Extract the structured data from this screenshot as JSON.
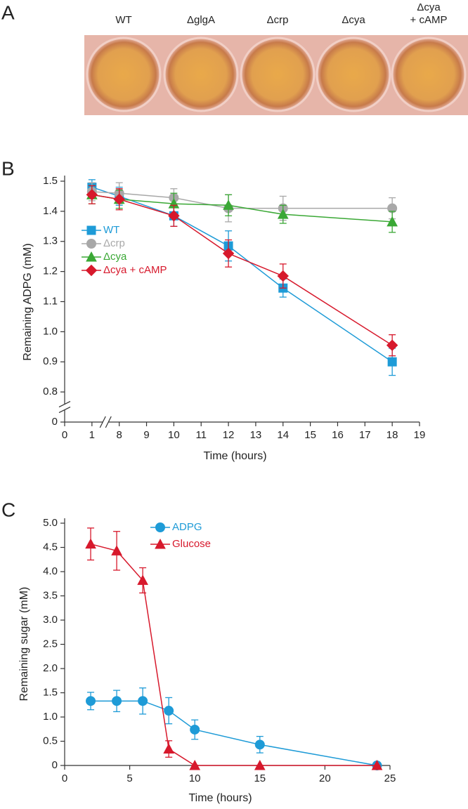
{
  "panel_labels": [
    "A",
    "B",
    "C"
  ],
  "photo_labels": [
    [
      "WT"
    ],
    [
      "ΔglgA"
    ],
    [
      "Δcrp"
    ],
    [
      "Δcya"
    ],
    [
      "Δcya",
      "+ cAMP"
    ]
  ],
  "chart_data": [
    {
      "type": "line",
      "x_title": "Time (hours)",
      "y_title": "Remaining ADPG (mM)",
      "x": [
        1,
        8,
        10,
        12,
        14,
        18
      ],
      "xlim": [
        0,
        19
      ],
      "xticks": [
        0,
        1,
        8,
        9,
        10,
        11,
        12,
        13,
        14,
        15,
        16,
        17,
        18,
        19
      ],
      "x_break": [
        1,
        8
      ],
      "ylim": [
        0,
        1.5
      ],
      "yticks": [
        0,
        0.8,
        0.9,
        {
          "value": 1.0,
          "label": "1.0"
        },
        1.1,
        1.2,
        1.3,
        1.4,
        1.5
      ],
      "y_break": [
        0,
        0.8
      ],
      "legend": "upper left",
      "series": [
        {
          "name": "WT",
          "color": "#1e9bd7",
          "marker": "square",
          "values": [
            1.48,
            1.45,
            1.385,
            1.285,
            1.145,
            0.9
          ],
          "errors": [
            0.025,
            0.03,
            0.035,
            0.05,
            0.03,
            0.045
          ]
        },
        {
          "name": "Δcrp",
          "color": "#a8a8a8",
          "marker": "circle",
          "values": [
            1.465,
            1.46,
            1.445,
            1.41,
            1.41,
            1.41
          ],
          "errors": [
            0.03,
            0.035,
            0.03,
            0.045,
            0.04,
            0.035
          ]
        },
        {
          "name": "Δcya",
          "color": "#3aa835",
          "marker": "triangle",
          "values": [
            1.455,
            1.44,
            1.425,
            1.42,
            1.39,
            1.365
          ],
          "errors": [
            0.03,
            0.03,
            0.035,
            0.035,
            0.03,
            0.035
          ]
        },
        {
          "name": "Δcya + cAMP",
          "color": "#d7192c",
          "marker": "diamond",
          "values": [
            1.455,
            1.44,
            1.385,
            1.26,
            1.185,
            0.955
          ],
          "errors": [
            0.03,
            0.035,
            0.035,
            0.045,
            0.04,
            0.035
          ]
        }
      ]
    },
    {
      "type": "line",
      "x_title": "Time (hours)",
      "y_title": "Remaining sugar  (mM)",
      "x": [
        2,
        4,
        6,
        8,
        10,
        15,
        24
      ],
      "xlim": [
        0,
        25
      ],
      "xticks": [
        0,
        5,
        10,
        15,
        20,
        25
      ],
      "ylim": [
        0,
        5
      ],
      "yticks": [
        0,
        0.5,
        {
          "value": 1.0,
          "label": "1.0"
        },
        1.5,
        {
          "value": 2.0,
          "label": "2.0"
        },
        2.5,
        {
          "value": 3.0,
          "label": "3.0"
        },
        3.5,
        {
          "value": 4.0,
          "label": "4.0"
        },
        4.5,
        {
          "value": 5.0,
          "label": "5.0"
        }
      ],
      "legend": "upper center",
      "series": [
        {
          "name": "ADPG",
          "color": "#1e9bd7",
          "marker": "circle",
          "values": [
            1.33,
            1.33,
            1.33,
            1.13,
            0.74,
            0.43,
            0.0
          ],
          "errors": [
            0.18,
            0.22,
            0.27,
            0.27,
            0.2,
            0.17,
            0.0
          ]
        },
        {
          "name": "Glucose",
          "color": "#d7192c",
          "marker": "triangle",
          "values": [
            4.57,
            4.43,
            3.82,
            0.34,
            0.0,
            0.0,
            0.0
          ],
          "errors": [
            0.33,
            0.4,
            0.26,
            0.17,
            0.0,
            0.0,
            0.0
          ]
        }
      ]
    }
  ]
}
